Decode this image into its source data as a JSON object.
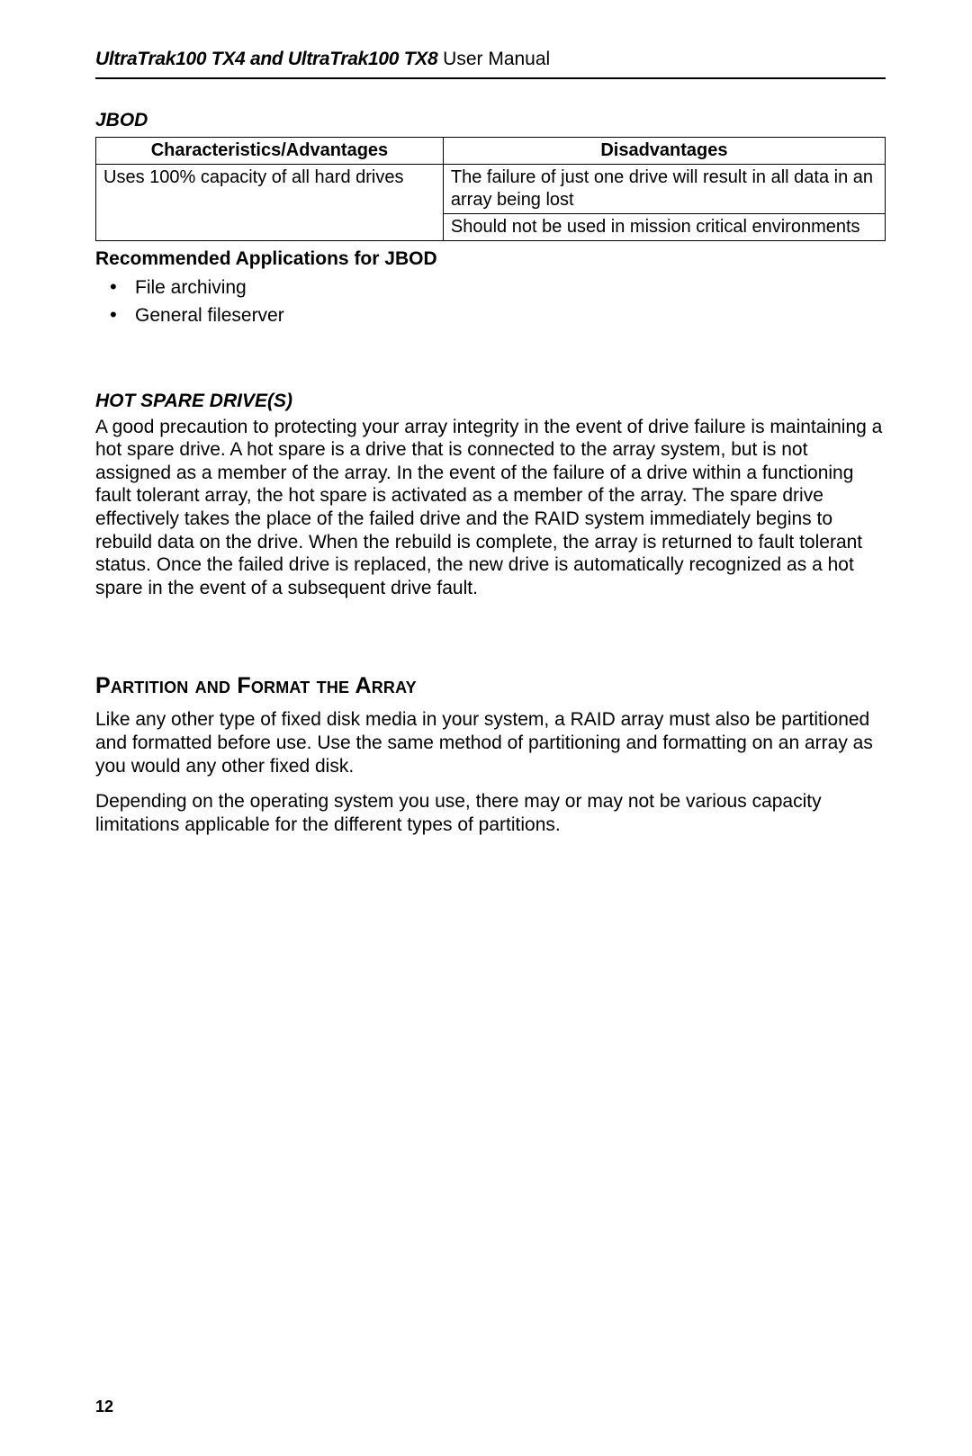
{
  "header": {
    "product": "UltraTrak100 TX4 and UltraTrak100 TX8",
    "suffix": "  User Manual"
  },
  "jbod": {
    "label": "JBOD",
    "table": {
      "col1": "Characteristics/Advantages",
      "col2": "Disadvantages",
      "r1c1": "Uses 100% capacity of all hard drives",
      "r1c2": "The failure of just one drive will result in all data in an array being lost",
      "r2c1": "",
      "r2c2": "Should not be used in mission critical environments"
    },
    "rec_heading": "Recommended Applications for JBOD",
    "rec_items": {
      "i0": "File archiving",
      "i1": "General fileserver"
    }
  },
  "hotspare": {
    "heading": "HOT SPARE DRIVE(S)",
    "body": "A good precaution to protecting your array integrity in the event of drive failure is maintaining a hot spare drive. A hot spare is a drive that is connected to the array system, but is not assigned as a member of the array. In the event of the failure of a drive within a functioning fault tolerant array, the hot spare is activated as a member of the array. The spare drive effectively takes the place of the failed drive and the RAID system immediately begins to rebuild data on the drive. When the rebuild is complete, the array is returned to fault tolerant status. Once the failed drive is replaced, the new drive is automatically recognized as a hot spare in the event of a subsequent drive fault."
  },
  "partition": {
    "heading": "Partition and Format the Array",
    "p1": "Like any other type of fixed disk media in your system, a RAID array must also be partitioned and formatted before use. Use the same method of partitioning and formatting on an array as you would any other fixed disk.",
    "p2": "Depending on the operating system you use, there may or may not be various capacity limitations applicable for the different types of partitions."
  },
  "page_number": "12"
}
